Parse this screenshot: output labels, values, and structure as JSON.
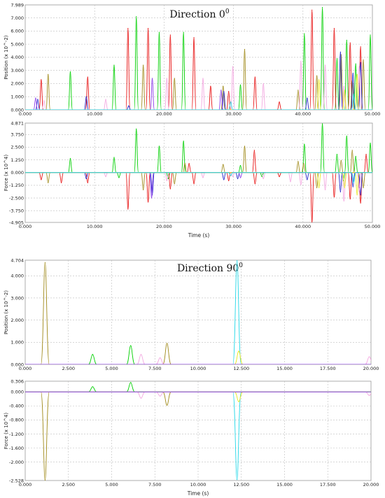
{
  "chart_data": [
    {
      "type": "line",
      "title": "Direction 0",
      "title_superscript": "0",
      "xlabel": "",
      "ylabel": "Position (x 10^-2)",
      "xlim": [
        0,
        50
      ],
      "ylim": [
        0,
        7.989
      ],
      "xticks": [
        "0.000",
        "10.000",
        "20.000",
        "30.000",
        "40.000",
        "50.000"
      ],
      "yticks": [
        "0.000",
        "1.000",
        "2.000",
        "3.000",
        "4.000",
        "5.000",
        "6.000",
        "7.000",
        "7.989"
      ],
      "grid": true,
      "series": [
        {
          "color": "#00d000",
          "peaks": [
            [
              6.5,
              2.9
            ],
            [
              12.8,
              3.4
            ],
            [
              16,
              7.1
            ],
            [
              19.3,
              5.9
            ],
            [
              22.8,
              5.9
            ],
            [
              31,
              1.9
            ],
            [
              40.2,
              5.8
            ],
            [
              42.8,
              7.8
            ],
            [
              44.9,
              3.9
            ],
            [
              46.3,
              5.3
            ],
            [
              47.6,
              3.5
            ],
            [
              49.7,
              5.7
            ]
          ]
        },
        {
          "color": "#e81010",
          "peaks": [
            [
              2.3,
              2.3
            ],
            [
              9,
              2.5
            ],
            [
              14.8,
              6.2
            ],
            [
              17.7,
              6.2
            ],
            [
              20.9,
              5.7
            ],
            [
              24.3,
              5.5
            ],
            [
              26.7,
              1.8
            ],
            [
              29.3,
              1.4
            ],
            [
              33.1,
              2.5
            ],
            [
              36.6,
              0.6
            ],
            [
              41.3,
              7.6
            ],
            [
              44.5,
              6.2
            ],
            [
              46.8,
              5.1
            ],
            [
              48.3,
              4.8
            ]
          ]
        },
        {
          "color": "#a08a1a",
          "peaks": [
            [
              3.3,
              2.7
            ],
            [
              17,
              3.4
            ],
            [
              21.5,
              2.4
            ],
            [
              28.5,
              1.8
            ],
            [
              31.6,
              4.6
            ],
            [
              39.3,
              1.5
            ],
            [
              42,
              2.6
            ],
            [
              45.5,
              4.2
            ],
            [
              47.1,
              2.2
            ],
            [
              48.7,
              3.8
            ]
          ]
        },
        {
          "color": "#2020c8",
          "peaks": [
            [
              1.8,
              0.8
            ],
            [
              8.8,
              1
            ],
            [
              14.9,
              0.3
            ],
            [
              28.6,
              1.4
            ],
            [
              40.6,
              0.9
            ],
            [
              45.4,
              4.4
            ],
            [
              47.2,
              2.8
            ],
            [
              48.3,
              3.6
            ]
          ]
        },
        {
          "color": "#8a3aea",
          "peaks": [
            [
              1.5,
              0.9
            ],
            [
              18.3,
              2.4
            ],
            [
              28.2,
              1.5
            ]
          ]
        },
        {
          "color": "#f3a6e0",
          "peaks": [
            [
              2.7,
              0.7
            ],
            [
              11.6,
              0.8
            ],
            [
              20.4,
              2.4
            ],
            [
              25.6,
              2.4
            ],
            [
              29.9,
              3.3
            ],
            [
              34.3,
              2
            ],
            [
              39.7,
              3.7
            ],
            [
              43.2,
              3.4
            ],
            [
              45.9,
              1.8
            ],
            [
              48.1,
              3.3
            ]
          ]
        },
        {
          "color": "#e8e81a",
          "peaks": [
            [
              42.3,
              2.3
            ],
            [
              46,
              1.5
            ],
            [
              47.8,
              2.7
            ]
          ]
        },
        {
          "color": "#22d8e8",
          "peaks": [
            [
              29.6,
              0.6
            ],
            [
              47.3,
              1.2
            ]
          ]
        }
      ]
    },
    {
      "type": "line",
      "title": "",
      "xlabel": "Time (s)",
      "ylabel": "Force (x 10^4)",
      "xlim": [
        0,
        50
      ],
      "ylim": [
        -4.905,
        4.871
      ],
      "xticks": [
        "0.000",
        "10.000",
        "20.000",
        "30.000",
        "40.000",
        "50.000"
      ],
      "yticks": [
        "-4.905",
        "-3.750",
        "-2.500",
        "-1.250",
        "0.000",
        "1.250",
        "2.500",
        "3.750",
        "4.871"
      ],
      "grid": true,
      "series": [
        {
          "color": "#00d000",
          "peaks": [
            [
              6.5,
              1.4
            ],
            [
              12.8,
              1.5
            ],
            [
              16,
              4.3
            ],
            [
              19.3,
              2.6
            ],
            [
              22.8,
              3.1
            ],
            [
              31,
              0.7
            ],
            [
              40.2,
              2.8
            ],
            [
              42.8,
              4.8
            ],
            [
              44.9,
              1.8
            ],
            [
              46.3,
              3.6
            ],
            [
              47.6,
              1.6
            ],
            [
              49.7,
              2.9
            ],
            [
              13.5,
              -0.5
            ],
            [
              20.6,
              -0.6
            ],
            [
              34.1,
              -0.4
            ],
            [
              45.8,
              -0.8
            ]
          ]
        },
        {
          "color": "#e81010",
          "peaks": [
            [
              2.3,
              -0.7
            ],
            [
              5.2,
              -1
            ],
            [
              9,
              -1
            ],
            [
              14.8,
              -3.6
            ],
            [
              17.7,
              -2.9
            ],
            [
              20.9,
              -1.6
            ],
            [
              24.3,
              -1.1
            ],
            [
              29.3,
              -0.8
            ],
            [
              33.1,
              -1.1
            ],
            [
              36.6,
              -0.4
            ],
            [
              41.3,
              -4.9
            ],
            [
              44.5,
              -2.4
            ],
            [
              46.8,
              -2.6
            ],
            [
              48.3,
              -3
            ],
            [
              23.6,
              0.9
            ],
            [
              33,
              2.2
            ],
            [
              49.1,
              1.8
            ]
          ]
        },
        {
          "color": "#a08a1a",
          "peaks": [
            [
              3.3,
              -1
            ],
            [
              17,
              -1.7
            ],
            [
              21.5,
              -1.1
            ],
            [
              28.5,
              0.8
            ],
            [
              31.6,
              2.6
            ],
            [
              39.3,
              1.1
            ],
            [
              42,
              -1.5
            ],
            [
              45.5,
              1.2
            ],
            [
              47.1,
              2.2
            ],
            [
              48.7,
              -1.5
            ],
            [
              23,
              0.9
            ],
            [
              40.1,
              0.9
            ]
          ]
        },
        {
          "color": "#2020c8",
          "peaks": [
            [
              8.8,
              -0.6
            ],
            [
              18.3,
              -2.2
            ],
            [
              28.6,
              -0.7
            ],
            [
              30.6,
              -0.6
            ],
            [
              40.6,
              -0.7
            ],
            [
              45.4,
              -1.9
            ],
            [
              47.2,
              -1.4
            ],
            [
              48.3,
              -2.2
            ]
          ]
        },
        {
          "color": "#8a3aea",
          "peaks": [
            [
              18.2,
              -2.5
            ],
            [
              31,
              -0.5
            ],
            [
              48.1,
              -1.5
            ]
          ]
        },
        {
          "color": "#f3a6e0",
          "peaks": [
            [
              11.6,
              -0.4
            ],
            [
              20.4,
              -0.8
            ],
            [
              25.6,
              -0.5
            ],
            [
              29.9,
              -0.4
            ],
            [
              34.3,
              -0.6
            ],
            [
              38.2,
              -0.9
            ],
            [
              39.7,
              -1.2
            ],
            [
              43.2,
              -1.7
            ],
            [
              45.9,
              -2.8
            ],
            [
              48.1,
              -1.9
            ]
          ]
        },
        {
          "color": "#e8e81a",
          "peaks": [
            [
              42.3,
              -1.5
            ],
            [
              46,
              -1.5
            ],
            [
              47.8,
              -2.2
            ]
          ]
        },
        {
          "color": "#22d8e8",
          "peaks": [
            [
              29.6,
              -0.3
            ],
            [
              47.3,
              -1
            ]
          ]
        }
      ]
    },
    {
      "type": "line",
      "title": "Direction 90",
      "title_superscript": "0",
      "xlabel": "",
      "ylabel": "Position (x 10^-2)",
      "xlim": [
        0,
        20
      ],
      "ylim": [
        0,
        4.704
      ],
      "xticks": [
        "0.000",
        "2.500",
        "5.000",
        "7.500",
        "10.000",
        "12.500",
        "15.000",
        "17.500",
        "20.000"
      ],
      "yticks": [
        "0.000",
        "1.000",
        "2.000",
        "3.000",
        "4.000",
        "4.704"
      ],
      "grid": true,
      "series": [
        {
          "color": "#a08a1a",
          "peaks": [
            [
              1.15,
              4.6
            ],
            [
              8.2,
              0.95
            ]
          ]
        },
        {
          "color": "#00d000",
          "peaks": [
            [
              3.9,
              0.45
            ],
            [
              6.1,
              0.85
            ]
          ]
        },
        {
          "color": "#22d8e8",
          "peaks": [
            [
              12.25,
              4.7
            ]
          ]
        },
        {
          "color": "#e8e81a",
          "peaks": [
            [
              12.35,
              0.6
            ]
          ]
        },
        {
          "color": "#f3a6e0",
          "peaks": [
            [
              6.7,
              0.45
            ],
            [
              7.8,
              0.3
            ],
            [
              19.9,
              0.35
            ]
          ]
        },
        {
          "color": "#8a3aea",
          "peaks": []
        }
      ]
    },
    {
      "type": "line",
      "title": "",
      "xlabel": "Time (s)",
      "ylabel": "Force (x 10^4)",
      "xlim": [
        0,
        20
      ],
      "ylim": [
        -2.528,
        0.306
      ],
      "xticks": [
        "0.000",
        "2.500",
        "5.000",
        "7.500",
        "10.000",
        "12.500",
        "15.000",
        "17.500",
        "20.000"
      ],
      "yticks": [
        "-2.528",
        "-2.000",
        "-1.600",
        "-1.200",
        "-0.800",
        "-0.400",
        "0.000",
        "0.306"
      ],
      "grid": true,
      "series": [
        {
          "color": "#a08a1a",
          "peaks": [
            [
              1.15,
              -2.52
            ],
            [
              8.2,
              -0.38
            ]
          ]
        },
        {
          "color": "#00d000",
          "peaks": [
            [
              3.9,
              0.15
            ],
            [
              6.1,
              0.27
            ]
          ]
        },
        {
          "color": "#22d8e8",
          "peaks": [
            [
              12.25,
              -2.5
            ]
          ]
        },
        {
          "color": "#e8e81a",
          "peaks": [
            [
              12.35,
              -0.28
            ]
          ]
        },
        {
          "color": "#f3a6e0",
          "peaks": [
            [
              6.7,
              -0.18
            ],
            [
              7.8,
              -0.12
            ],
            [
              19.9,
              -0.1
            ]
          ]
        },
        {
          "color": "#8a3aea",
          "peaks": []
        }
      ]
    }
  ]
}
